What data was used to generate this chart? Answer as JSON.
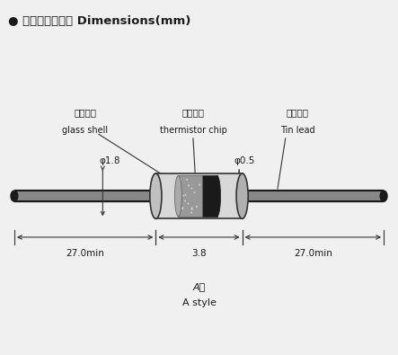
{
  "title": "● 外形结构和尺寸 Dimensions(mm)",
  "title_fontsize": 10,
  "background_color": "#f0f0f0",
  "label_glass_cn": "玻璃外壳",
  "label_glass_en": "glass shell",
  "label_thermistor_cn": "热敏芯片",
  "label_thermistor_en": "thermistor chip",
  "label_tin_cn": "镀锡导线",
  "label_tin_en": "Tin lead",
  "dim_phi18": "φ1.8",
  "dim_phi05": "φ0.5",
  "dim_27left": "27.0min",
  "dim_38": "3.8",
  "dim_27right": "27.0min",
  "label_Astyle_cn": "A型",
  "label_Astyle_en": "A style",
  "wire_color": "#1a1a1a",
  "body_fill": "#e8e8e8",
  "body_edge": "#333333",
  "chip_fill": "#555555",
  "chip_dots": "#cccccc",
  "text_color": "#1a1a1a",
  "line_color": "#333333"
}
